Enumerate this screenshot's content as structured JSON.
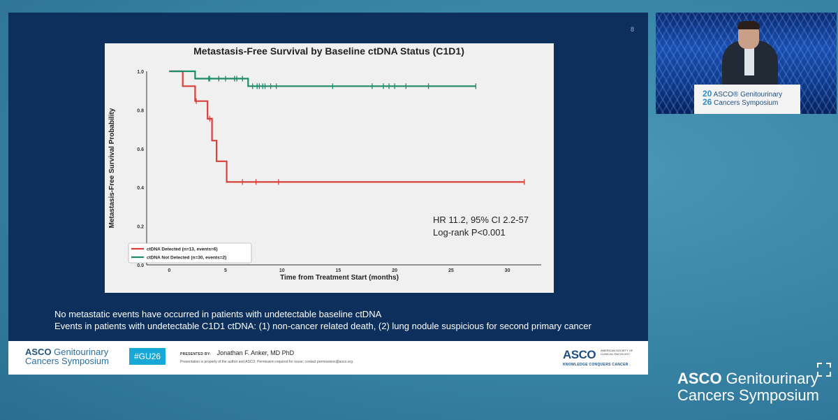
{
  "slide": {
    "page_number": "8",
    "notes": [
      "No metastatic events have occurred in patients with undetectable baseline ctDNA",
      "Events in patients with undetectable C1D1 ctDNA: (1) non-cancer related death, (2) lung nodule suspicious for second primary cancer"
    ],
    "footer": {
      "logo_line1_brand": "ASCO",
      "logo_line1_rest": " Genitourinary",
      "logo_line2": "Cancers Symposium",
      "hashtag": "#GU26",
      "presented_by_label": "PRESENTED BY:",
      "presenter": "Jonathan F. Anker, MD PhD",
      "property_note": "Presentation is property of the author and ASCO. Permission required for reuse; contact permissions@asco.org.",
      "asco_right_logo": "ASCO",
      "asco_right_small": "AMERICAN SOCIETY OF CLINICAL ONCOLOGY",
      "asco_right_tagline": "KNOWLEDGE CONQUERS CANCER"
    }
  },
  "chart_data": {
    "type": "line",
    "title": "Metastasis-Free Survival by Baseline ctDNA Status (C1D1)",
    "xlabel": "Time from Treatment Start (months)",
    "ylabel": "Metastasis-Free Survival Probability",
    "xlim": [
      -2,
      33
    ],
    "ylim": [
      0.0,
      1.0
    ],
    "xticks": [
      0,
      5,
      10,
      15,
      20,
      25,
      30
    ],
    "yticks": [
      0.0,
      0.2,
      0.4,
      0.6,
      0.8,
      1.0
    ],
    "ytick_labels": [
      "0.0",
      "0.2",
      "0.4",
      "0.6",
      "0.8",
      "1.0"
    ],
    "annotation": [
      "HR 11.2, 95% CI 2.2-57",
      "Log-rank P<0.001"
    ],
    "legend_position": "lower-left",
    "series": [
      {
        "name": "ctDNA Detected (n=13, events=6)",
        "color": "#d8403a",
        "step_x": [
          0,
          1.2,
          1.2,
          2.3,
          2.3,
          3.4,
          3.4,
          3.8,
          3.8,
          4.2,
          4.2,
          5.1,
          5.1,
          31.5
        ],
        "step_y": [
          1.0,
          1.0,
          0.923,
          0.923,
          0.846,
          0.846,
          0.755,
          0.755,
          0.642,
          0.642,
          0.535,
          0.535,
          0.428,
          0.428
        ],
        "censor_x": [
          2.4,
          3.6,
          6.5,
          7.7,
          9.7,
          31.5
        ],
        "censor_y": [
          0.846,
          0.755,
          0.428,
          0.428,
          0.428,
          0.428
        ]
      },
      {
        "name": "ctDNA Not Detected (n=30, events=2)",
        "color": "#1e8a6a",
        "step_x": [
          0,
          2.3,
          2.3,
          7.0,
          7.0,
          27.2
        ],
        "step_y": [
          1.0,
          1.0,
          0.962,
          0.962,
          0.923,
          0.923
        ],
        "censor_x": [
          3.5,
          3.6,
          4.4,
          5.0,
          5.8,
          6.0,
          6.5,
          7.4,
          7.8,
          8.0,
          8.3,
          8.5,
          9.0,
          9.5,
          14.5,
          18.0,
          19.0,
          19.5,
          20.0,
          21.0,
          23.0,
          27.2
        ],
        "censor_y": [
          0.962,
          0.962,
          0.962,
          0.962,
          0.962,
          0.962,
          0.962,
          0.923,
          0.923,
          0.923,
          0.923,
          0.923,
          0.923,
          0.923,
          0.923,
          0.923,
          0.923,
          0.923,
          0.923,
          0.923,
          0.923,
          0.923
        ]
      }
    ]
  },
  "speaker_video": {
    "podium_year_top": "20",
    "podium_year_bottom": "26",
    "podium_line1": "ASCO® Genitourinary",
    "podium_line2": "Cancers Symposium"
  },
  "brand": {
    "brand_bold": "ASCO",
    "line1_rest": " Genitourinary",
    "line2": "Cancers Symposium"
  },
  "icons": {
    "fullscreen": "fullscreen-icon"
  }
}
